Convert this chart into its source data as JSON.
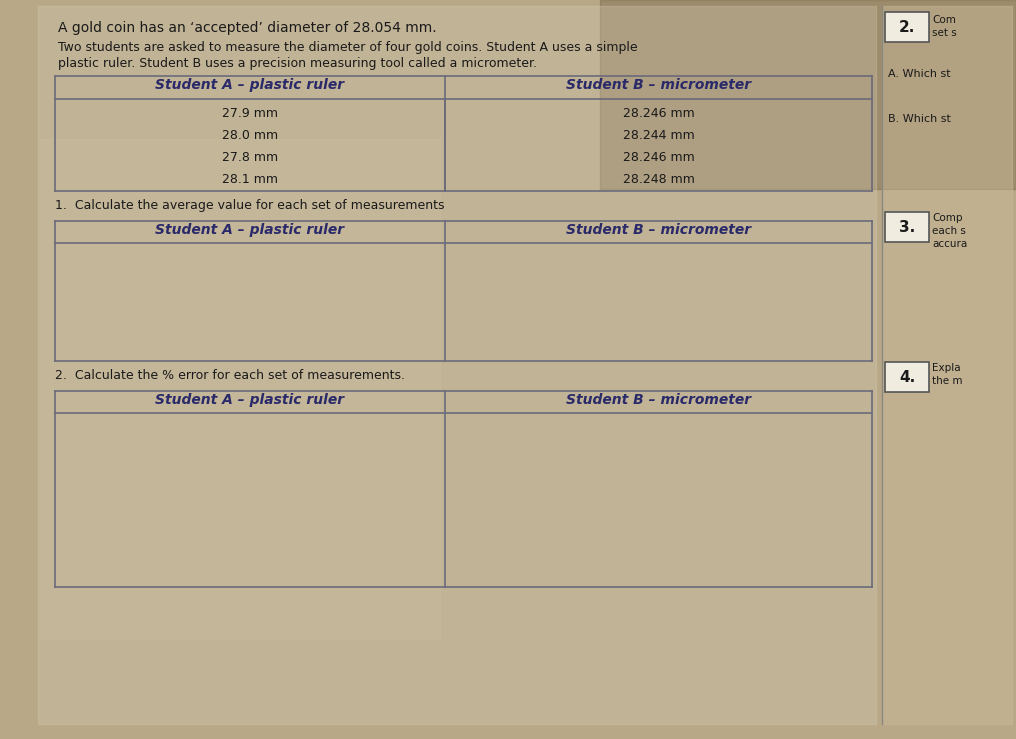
{
  "bg_color": "#b8a888",
  "paper_color": "#e8e0cc",
  "title_text": "A gold coin has an ‘accepted’ diameter of 28.054 mm.",
  "intro_line1": "Two students are asked to measure the diameter of four gold coins. Student A uses a simple",
  "intro_line2": "plastic ruler. Student B uses a precision measuring tool called a micrometer.",
  "table1_header_a": "Student A – plastic ruler",
  "table1_header_b": "Student B – micrometer",
  "table1_data_a": [
    "27.9 mm",
    "28.0 mm",
    "27.8 mm",
    "28.1 mm"
  ],
  "table1_data_b": [
    "28.246 mm",
    "28.244 mm",
    "28.246 mm",
    "28.248 mm"
  ],
  "question1_text": "1.  Calculate the average value for each set of measurements",
  "table2_header_a": "Student A – plastic ruler",
  "table2_header_b": "Student B – micrometer",
  "question2_text": "2.  Calculate the % error for each set of measurements.",
  "table3_header_a": "Student A – plastic ruler",
  "table3_header_b": "Student B – micrometer",
  "header_text_color": "#2a2a6a",
  "body_text_color": "#1a1a1a",
  "table_line_color": "#6a6a7a",
  "right_box_color": "#f0ece0",
  "right_num_2_text": "Com\nset s",
  "right_A_text": "A. Which st",
  "right_B_text": "B. Which st",
  "right_num_3_text": "Comp\neach s\naccura",
  "right_num_4_text": "Expla\nthe m"
}
